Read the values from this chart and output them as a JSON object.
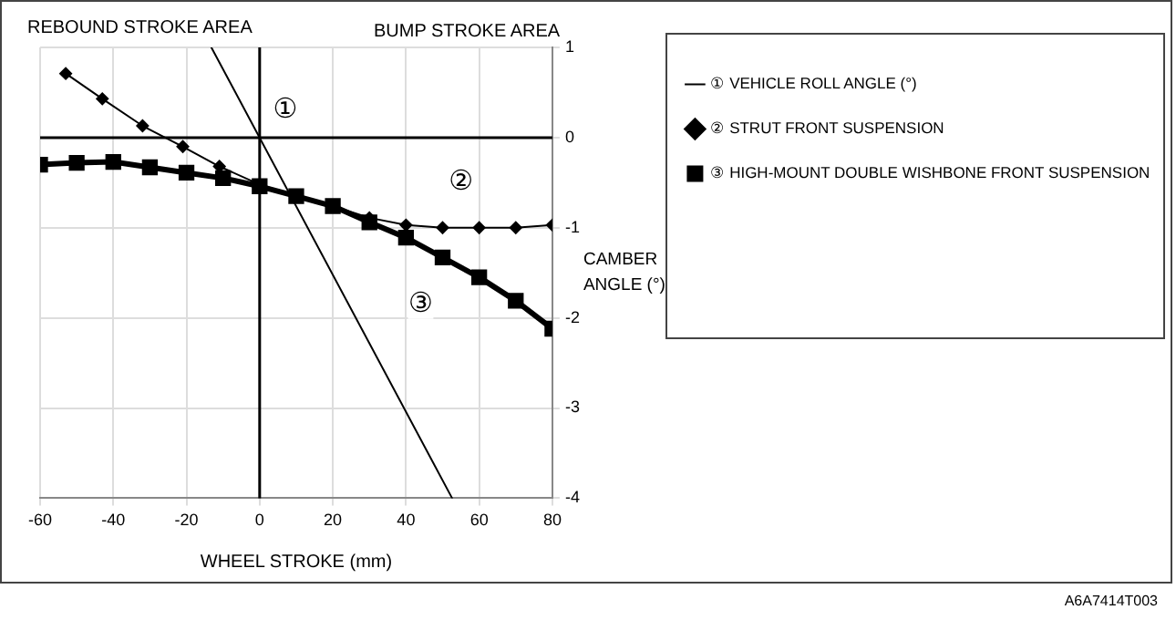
{
  "chart_data": {
    "type": "line",
    "xlabel": "WHEEL STROKE (mm)",
    "ylabel": "CAMBER ANGLE (°)",
    "xlim": [
      -60,
      80
    ],
    "xticks": [
      -60,
      -40,
      -20,
      0,
      20,
      40,
      60,
      80
    ],
    "ylim": [
      -4,
      1
    ],
    "yticks": [
      -4,
      -3,
      -2,
      -1,
      0,
      1
    ],
    "grid": true,
    "legend": "right",
    "line_style": "solid",
    "series": [
      {
        "name": "① VEHICLE ROLL ANGLE (°)",
        "color": "#000000",
        "marker": "none",
        "x": [
          -13.2,
          52.6
        ],
        "values": [
          1,
          -4
        ]
      },
      {
        "name": "② STRUT FRONT SUSPENSION",
        "color": "#000000",
        "marker": "diamond",
        "x": [
          -53,
          -43,
          -32,
          -21,
          -11,
          0,
          10,
          20,
          30,
          40,
          50,
          60,
          70,
          80
        ],
        "values": [
          0.71,
          0.43,
          0.13,
          -0.1,
          -0.32,
          -0.52,
          -0.65,
          -0.76,
          -0.89,
          -0.97,
          -1.0,
          -1.0,
          -1.0,
          -0.97
        ]
      },
      {
        "name": "③ HIGH-MOUNT DOUBLE WISHBONE FRONT SUSPENSION",
        "color": "#000000",
        "marker": "square",
        "x": [
          -60,
          -50,
          -40,
          -30,
          -20,
          -10,
          0,
          10,
          20,
          30,
          40,
          50,
          60,
          70,
          80
        ],
        "values": [
          -0.3,
          -0.28,
          -0.27,
          -0.33,
          -0.39,
          -0.45,
          -0.54,
          -0.65,
          -0.76,
          -0.94,
          -1.11,
          -1.33,
          -1.55,
          -1.81,
          -2.12
        ]
      }
    ],
    "annotations": [
      "REBOUND STROKE AREA",
      "BUMP STROKE AREA",
      "A6A7414T003",
      {
        "text": "①",
        "x": 7,
        "y": 0.3
      },
      {
        "text": "②",
        "x": 55,
        "y": -0.5
      },
      {
        "text": "③",
        "x": 44,
        "y": -1.85
      }
    ]
  }
}
